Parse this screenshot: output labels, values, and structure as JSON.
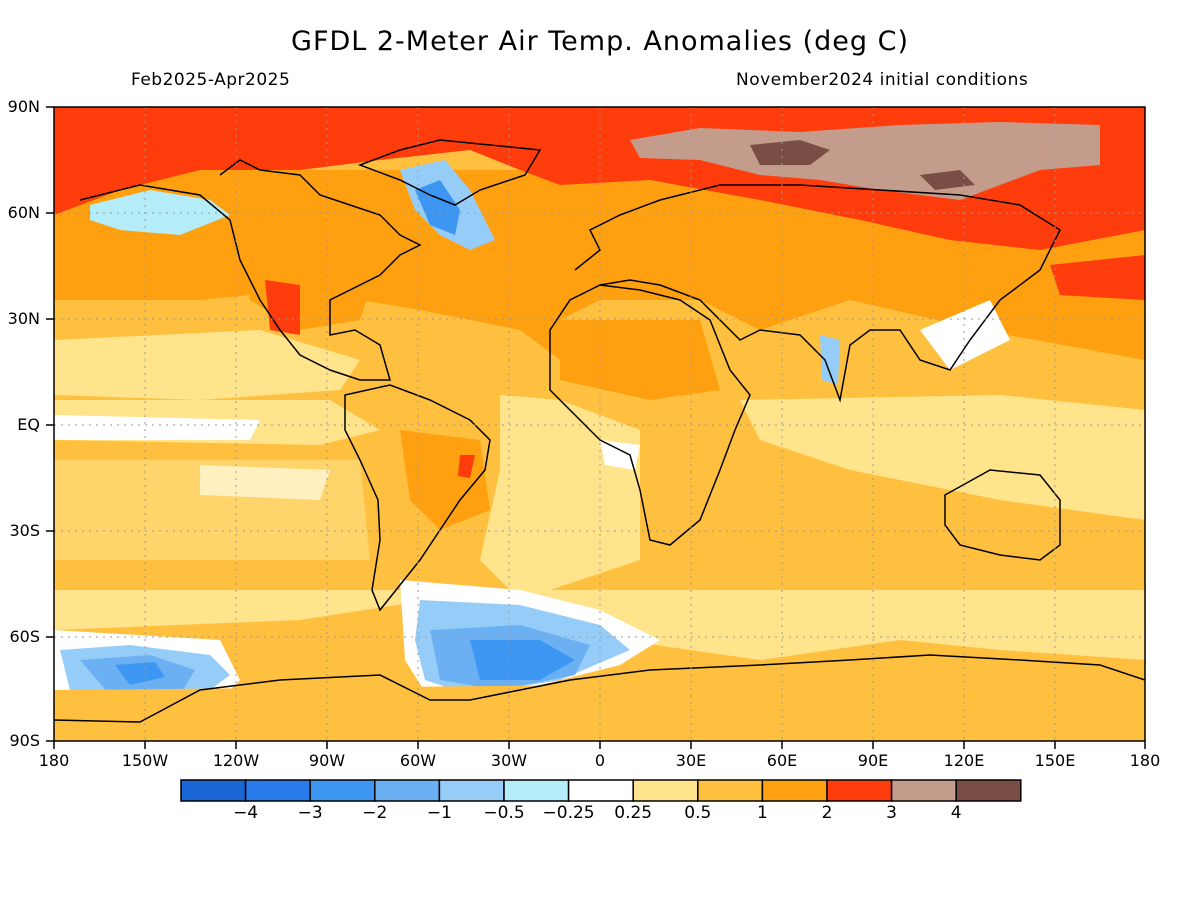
{
  "title": "GFDL 2-Meter Air Temp. Anomalies (deg C)",
  "subtitle_left": "Feb2025-Apr2025",
  "subtitle_right": "November2024 initial conditions",
  "lat_labels": [
    "90N",
    "60N",
    "30N",
    "EQ",
    "30S",
    "60S",
    "90S"
  ],
  "lon_labels": [
    "180",
    "150W",
    "120W",
    "90W",
    "60W",
    "30W",
    "0",
    "30E",
    "60E",
    "90E",
    "120E",
    "150E",
    "180"
  ],
  "colorbar": {
    "colors": [
      "#1a66d4",
      "#2a7cec",
      "#3c96f2",
      "#6cb0f4",
      "#96cdf8",
      "#b4ecf8",
      "#ffffff",
      "#ffe48c",
      "#ffc040",
      "#ffa010",
      "#ff3c0c",
      "#c49c8c",
      "#7a4e44"
    ],
    "labels": [
      "-4",
      "-3",
      "-2",
      "-1",
      "-0.5",
      "-0.25",
      "0.25",
      "0.5",
      "1",
      "2",
      "3",
      "4"
    ]
  },
  "regions": [
    {
      "name": "arctic-band",
      "color": "#ff3c0c"
    },
    {
      "name": "siberia-high",
      "color": "#c49c8c"
    },
    {
      "name": "siberia-max",
      "color": "#7a4e44"
    },
    {
      "name": "labrador-cold",
      "color": "#6cb0f4"
    },
    {
      "name": "weddell-cold",
      "color": "#3c96f2"
    },
    {
      "name": "amundsen-cold",
      "color": "#3c96f2"
    },
    {
      "name": "alaska-cool",
      "color": "#b4ecf8"
    }
  ]
}
